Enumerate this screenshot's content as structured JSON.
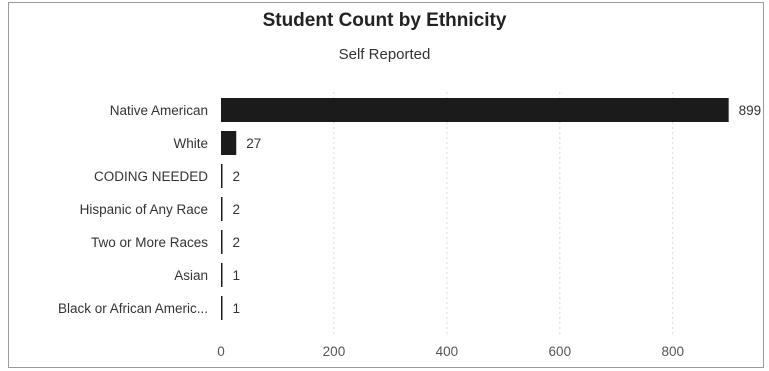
{
  "chart_data": {
    "type": "bar",
    "orientation": "horizontal",
    "title": "Student Count by Ethnicity",
    "subtitle": "Self Reported",
    "categories": [
      "Native American",
      "White",
      "CODING NEEDED",
      "Hispanic of Any Race",
      "Two or More Races",
      "Asian",
      "Black or African Americ..."
    ],
    "values": [
      899,
      27,
      2,
      2,
      2,
      1,
      1
    ],
    "value_labels": [
      "899",
      "27",
      "2",
      "2",
      "2",
      "1",
      "1"
    ],
    "xlim": [
      0,
      935
    ],
    "xticks": [
      0,
      200,
      400,
      600,
      800
    ],
    "xtick_labels": [
      "0",
      "200",
      "400",
      "600",
      "800"
    ],
    "xlabel": "",
    "ylabel": "",
    "grid": true,
    "bar_color": "#1b1b1b",
    "grid_color": "#d9d9d9"
  }
}
